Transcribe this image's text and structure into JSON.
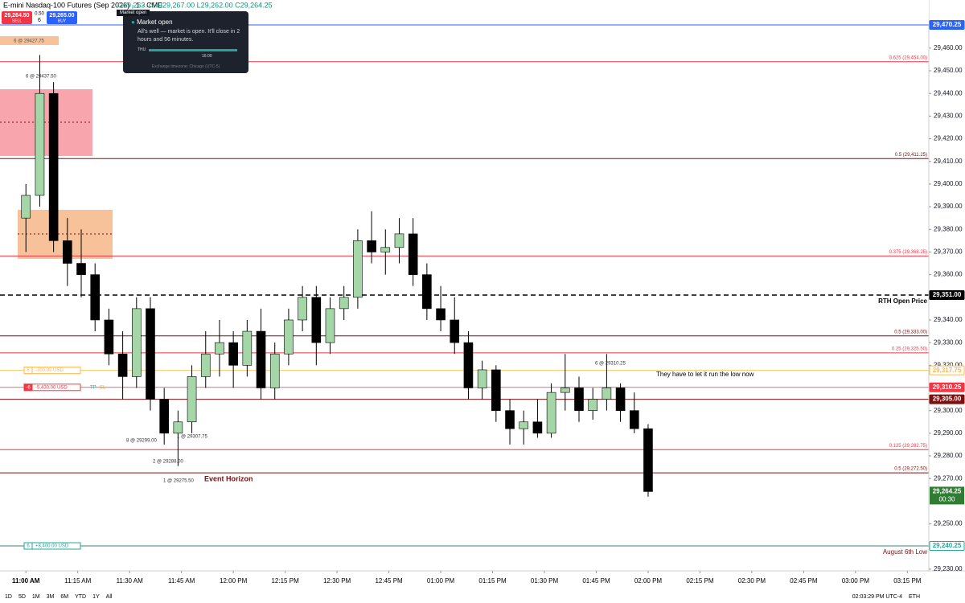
{
  "header": {
    "title": "E-mini Nasdaq-100 Futures (Sep 2026) · 1 · CME",
    "ohlc": "O29,263.75 H29,267.00 L29,262.00 C29,264.25",
    "sell_price": "29,264.50",
    "sell_label": "SELL",
    "spread": "0.50",
    "qty": "6",
    "buy_price": "29,265.00",
    "buy_label": "BUY"
  },
  "tooltip": {
    "caption": "Market open",
    "status": "Market open",
    "message": "All's well — market is open. It'll close in 2 hours and 56 minutes.",
    "day": "THU",
    "close_time": "16:00",
    "timezone": "Exchange timezone: Chicago (UTC-5)"
  },
  "annotations": [
    "6 @ 29427.75",
    "6 @ 29437.50",
    "8 @ 29299.00",
    "2 @ 29288.00",
    "1 @ 29275.50",
    "1 @ 29307.75",
    "6 @ 29310.25",
    "They have to let it run the low now",
    "Event Horizon"
  ],
  "toolbar": {
    "ranges": [
      "1D",
      "5D",
      "1M",
      "3M",
      "6M",
      "YTD",
      "1Y",
      "All"
    ],
    "clock": "02:03:29 PM UTC-4",
    "session": "ETH"
  },
  "chart_data": {
    "type": "candlestick",
    "up_color": "#a5d6a7",
    "down_color": "#000000",
    "x": [
      660,
      664,
      668,
      672,
      676,
      680,
      684,
      688,
      692,
      696,
      700,
      704,
      708,
      712,
      716,
      720,
      724,
      728,
      732,
      736,
      740,
      744,
      748,
      752,
      756,
      760,
      764,
      768,
      772,
      776,
      780,
      784,
      788,
      792,
      796,
      800,
      804,
      808,
      812,
      816,
      820,
      824,
      828,
      832,
      836,
      840
    ],
    "open": [
      29385,
      29395,
      29440,
      29375,
      29365,
      29360,
      29340,
      29325,
      29315,
      29345,
      29305,
      29290,
      29295,
      29315,
      29325,
      29330,
      29320,
      29335,
      29310,
      29325,
      29340,
      29350,
      29330,
      29345,
      29350,
      29375,
      29370,
      29372,
      29378,
      29360,
      29345,
      29340,
      29330,
      29310,
      29318,
      29300,
      29292,
      29295,
      29290,
      29308,
      29310,
      29300,
      29305,
      29310,
      29300,
      29292
    ],
    "high": [
      29400,
      29457,
      29445,
      29385,
      29380,
      29365,
      29345,
      29335,
      29350,
      29350,
      29310,
      29300,
      29320,
      29335,
      29340,
      29335,
      29340,
      29345,
      29330,
      29345,
      29355,
      29355,
      29350,
      29355,
      29380,
      29388,
      29380,
      29385,
      29385,
      29365,
      29355,
      29350,
      29335,
      29322,
      29320,
      29305,
      29300,
      29305,
      29312,
      29325,
      29315,
      29310,
      29325,
      29312,
      29308,
      29294
    ],
    "low": [
      29370,
      29390,
      29370,
      29355,
      29350,
      29335,
      29320,
      29305,
      29310,
      29300,
      29285,
      29275.5,
      29290,
      29310,
      29315,
      29310,
      29315,
      29305,
      29305,
      29320,
      29335,
      29320,
      29325,
      29340,
      29345,
      29365,
      29360,
      29365,
      29355,
      29340,
      29335,
      29325,
      29305,
      29305,
      29295,
      29285,
      29285,
      29288,
      29288,
      29300,
      29295,
      29296,
      29300,
      29295,
      29290,
      29262
    ],
    "close": [
      29395,
      29440,
      29375,
      29365,
      29360,
      29340,
      29325,
      29315,
      29345,
      29305,
      29290,
      29295,
      29315,
      29325,
      29330,
      29320,
      29335,
      29310,
      29325,
      29340,
      29350,
      29330,
      29345,
      29350,
      29375,
      29370,
      29372,
      29378,
      29360,
      29345,
      29340,
      29330,
      29310,
      29318,
      29300,
      29292,
      29295,
      29290,
      29308,
      29310,
      29300,
      29305,
      29310,
      29300,
      29292,
      29264.25
    ],
    "xlim": [
      652.5,
      921.2
    ],
    "xticks": [
      {
        "value": 660,
        "label": "11:00 AM"
      },
      {
        "value": 675,
        "label": "11:15 AM"
      },
      {
        "value": 690,
        "label": "11:30 AM"
      },
      {
        "value": 705,
        "label": "11:45 AM"
      },
      {
        "value": 720,
        "label": "12:00 PM"
      },
      {
        "value": 735,
        "label": "12:15 PM"
      },
      {
        "value": 750,
        "label": "12:30 PM"
      },
      {
        "value": 765,
        "label": "12:45 PM"
      },
      {
        "value": 780,
        "label": "01:00 PM"
      },
      {
        "value": 795,
        "label": "01:15 PM"
      },
      {
        "value": 810,
        "label": "01:30 PM"
      },
      {
        "value": 825,
        "label": "01:45 PM"
      },
      {
        "value": 840,
        "label": "02:00 PM"
      },
      {
        "value": 855,
        "label": "02:15 PM"
      },
      {
        "value": 870,
        "label": "02:30 PM"
      },
      {
        "value": 885,
        "label": "02:45 PM"
      },
      {
        "value": 900,
        "label": "03:00 PM"
      },
      {
        "value": 915,
        "label": "03:15 PM"
      }
    ],
    "ylim": [
      29229.25,
      29481.25
    ],
    "yticks": [
      {
        "value": 29460,
        "label": "29,460.00"
      },
      {
        "value": 29450,
        "label": "29,450.00"
      },
      {
        "value": 29440,
        "label": "29,440.00"
      },
      {
        "value": 29430,
        "label": "29,430.00"
      },
      {
        "value": 29420,
        "label": "29,420.00"
      },
      {
        "value": 29410,
        "label": "29,410.00"
      },
      {
        "value": 29400,
        "label": "29,400.00"
      },
      {
        "value": 29390,
        "label": "29,390.00"
      },
      {
        "value": 29380,
        "label": "29,380.00"
      },
      {
        "value": 29370,
        "label": "29,370.00"
      },
      {
        "value": 29360,
        "label": "29,360.00"
      },
      {
        "value": 29340,
        "label": "29,340.00"
      },
      {
        "value": 29330,
        "label": "29,330.00"
      },
      {
        "value": 29320,
        "label": "29,320.00"
      },
      {
        "value": 29300,
        "label": "29,300.00"
      },
      {
        "value": 29290,
        "label": "29,290.00"
      },
      {
        "value": 29280,
        "label": "29,280.00"
      },
      {
        "value": 29270,
        "label": "29,270.00"
      },
      {
        "value": 29250,
        "label": "29,250.00"
      },
      {
        "value": 29230,
        "label": "29,230.00"
      }
    ],
    "levels": [
      {
        "value": 29470.25,
        "color": "#2962ff",
        "badge": "29,470.25"
      },
      {
        "value": 29454,
        "color": "#f23645",
        "label": "0.625 (29,454.00)"
      },
      {
        "value": 29411.25,
        "color": "#7b1010",
        "label": "0.5 (29,411.25)"
      },
      {
        "value": 29368.25,
        "color": "#f23645",
        "label": "0.375 (29,368.25)"
      },
      {
        "value": 29351,
        "color": "#000000",
        "dashed": true,
        "label": "RTH Open Price",
        "badge": "29,351.00"
      },
      {
        "value": 29333,
        "color": "#7b1010",
        "label": "0.5 (29,333.00)"
      },
      {
        "value": 29325.5,
        "color": "#f23645",
        "label": "0.25 (29,325.50)"
      },
      {
        "value": 29305,
        "color": "#7b1010",
        "badge": "29,305.00"
      },
      {
        "value": 29282.75,
        "color": "#f23645",
        "label": "0.125 (29,282.75)"
      },
      {
        "value": 29272.5,
        "color": "#7b1010",
        "label": "0.5 (29,272.50)"
      },
      {
        "value": 29240.25,
        "color": "#7b1010",
        "label": "August 6th Low"
      }
    ],
    "positions": [
      {
        "value": 29317.75,
        "color": "#ffb74d",
        "qty": "6",
        "pnl": "-300.00 USD",
        "badge": "29,317.75"
      },
      {
        "value": 29310.25,
        "color": "#f23645",
        "qty": "-6",
        "pnl": "-5,430.00 USD",
        "tp": "TP",
        "sl": "SL",
        "badge": "29,310.25"
      },
      {
        "value": 29240.25,
        "color": "#26a69a",
        "qty": "6",
        "pnl": "+8,400.00 USD",
        "badge": "29,240.25"
      }
    ],
    "last_price": {
      "value": 29264.25,
      "label": "29,264.25",
      "countdown": "00:30",
      "color": "#2e7d32"
    }
  }
}
